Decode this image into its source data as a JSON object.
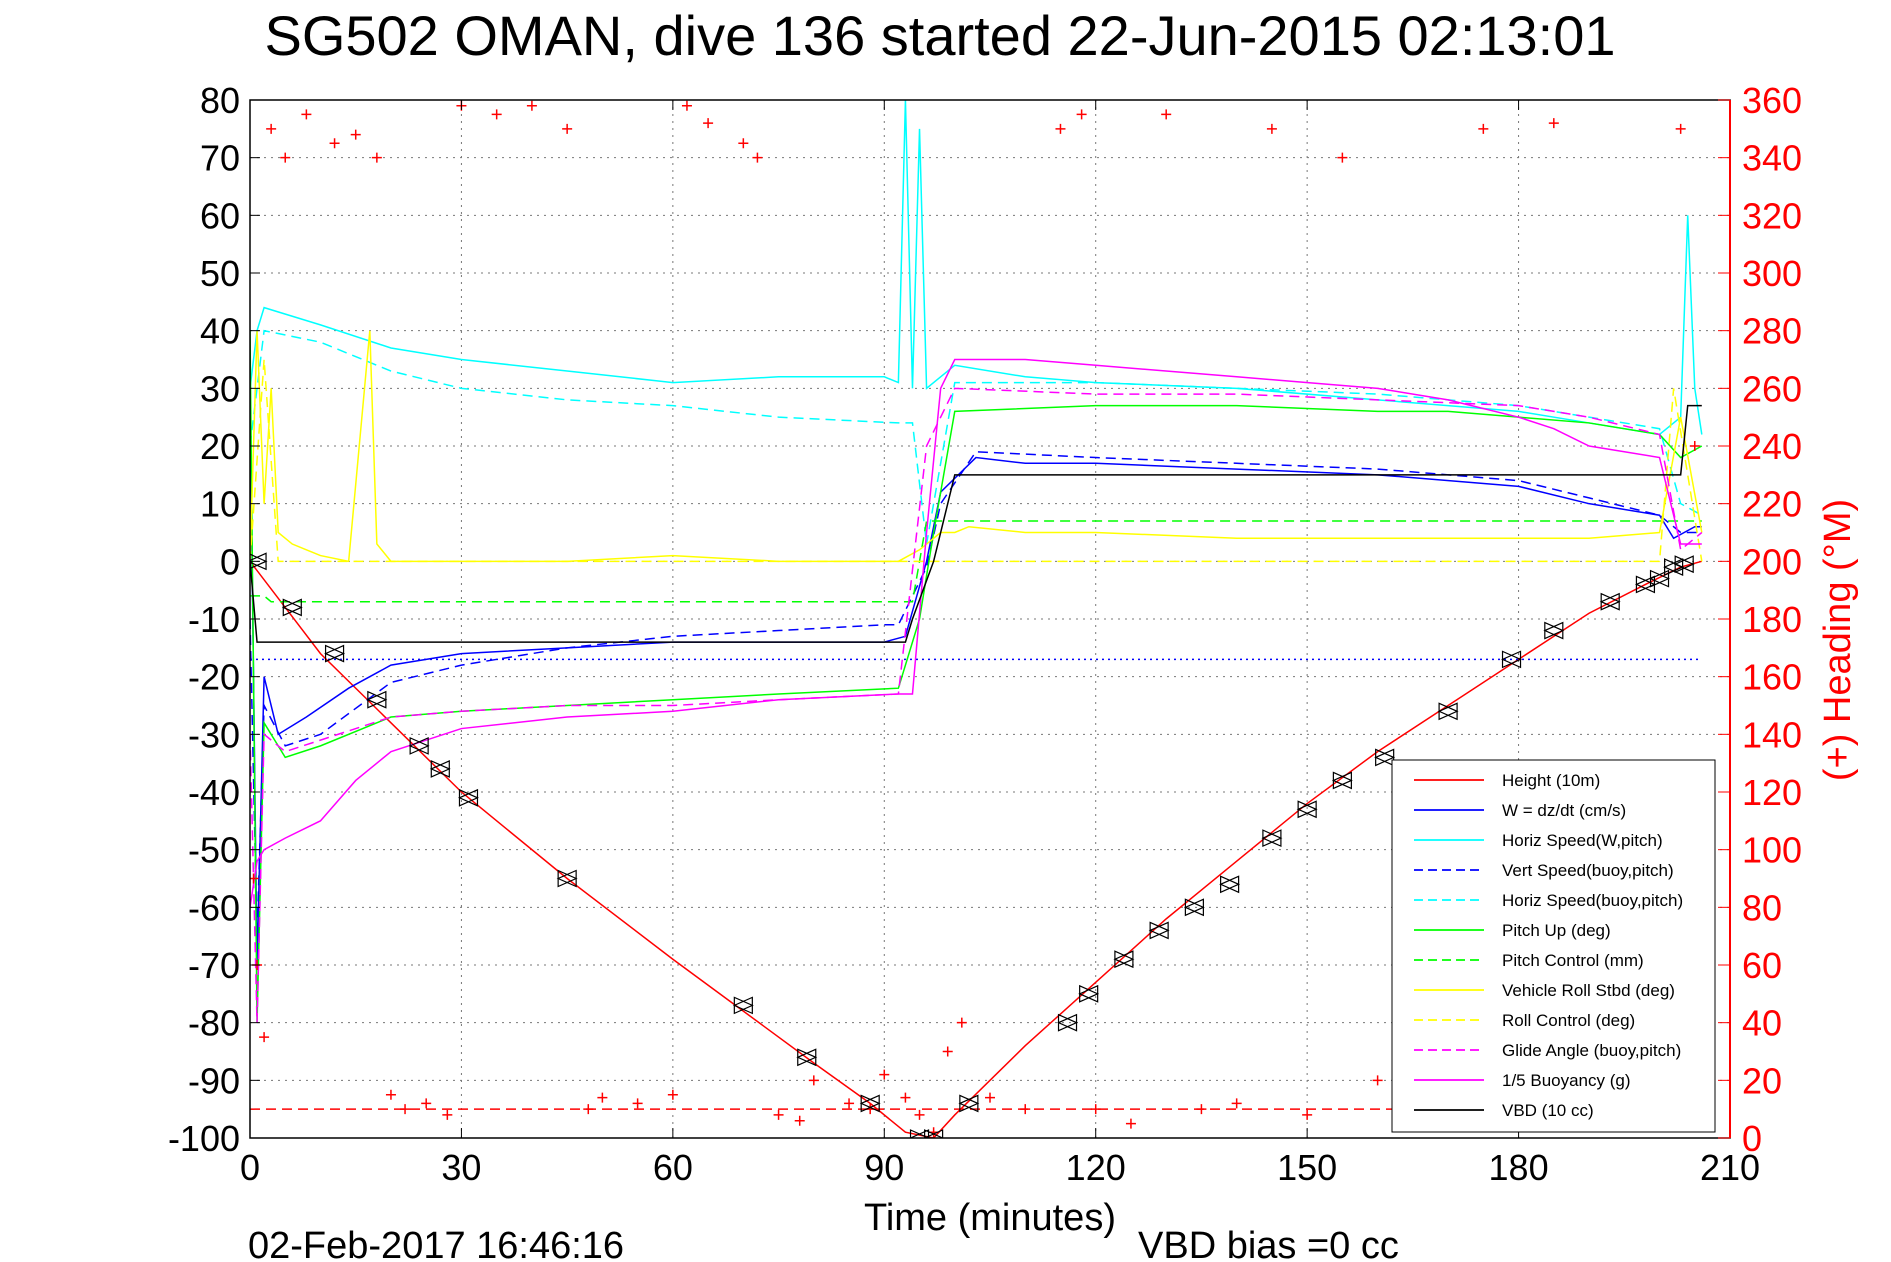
{
  "chart_data": {
    "type": "line",
    "title": "SG502 OMAN, dive 136 started 22-Jun-2015 02:13:01",
    "xlabel": "Time (minutes)",
    "ylabel": "",
    "y2label": "(+) Heading (°M)",
    "xlim": [
      0,
      210
    ],
    "ylim": [
      -100,
      80
    ],
    "y2lim": [
      0,
      360
    ],
    "xticks": [
      "0",
      "30",
      "60",
      "90",
      "120",
      "150",
      "180",
      "210"
    ],
    "yticks": [
      "80",
      "70",
      "60",
      "50",
      "40",
      "30",
      "20",
      "10",
      "0",
      "-10",
      "-20",
      "-30",
      "-40",
      "-50",
      "-60",
      "-70",
      "-80",
      "-90",
      "-100"
    ],
    "y2ticks": [
      "360",
      "340",
      "320",
      "300",
      "280",
      "260",
      "240",
      "220",
      "200",
      "180",
      "160",
      "140",
      "120",
      "100",
      "80",
      "60",
      "40",
      "20",
      "0"
    ],
    "grid": true,
    "legend_position": "lower-right",
    "footer_date": "02-Feb-2017 16:46:16",
    "footer_vbd": "VBD bias =0 cc",
    "series": [
      {
        "name": "Height (10m)",
        "color": "#ff0000",
        "style": "solid",
        "x": [
          0,
          5,
          10,
          20,
          30,
          45,
          60,
          70,
          80,
          88,
          93,
          97,
          100,
          110,
          120,
          130,
          140,
          150,
          160,
          170,
          180,
          190,
          198,
          203,
          206
        ],
        "y": [
          0,
          -8,
          -16,
          -28,
          -40,
          -55,
          -69,
          -78,
          -87,
          -94,
          -99,
          -100,
          -96,
          -84,
          -73,
          -62,
          -52,
          -42,
          -33,
          -25,
          -17,
          -9,
          -4,
          -1,
          0
        ]
      },
      {
        "name": "W = dz/dt (cm/s)",
        "color": "#0000ff",
        "style": "solid",
        "x": [
          0,
          1,
          2,
          4,
          8,
          14,
          20,
          30,
          45,
          60,
          75,
          90,
          93,
          96,
          98,
          103,
          110,
          120,
          140,
          160,
          180,
          190,
          200,
          202,
          205,
          206
        ],
        "y": [
          30,
          -70,
          -20,
          -30,
          -27,
          -22,
          -18,
          -16,
          -15,
          -14,
          -14,
          -14,
          -13,
          0,
          12,
          18,
          17,
          17,
          16,
          15,
          13,
          10,
          8,
          4,
          6,
          6
        ]
      },
      {
        "name": "Horiz Speed(W,pitch)",
        "color": "#00ffff",
        "style": "solid",
        "x": [
          0,
          1,
          2,
          10,
          20,
          30,
          45,
          60,
          75,
          90,
          92,
          93,
          94,
          95,
          96,
          98,
          100,
          110,
          120,
          140,
          160,
          180,
          190,
          200,
          203,
          204,
          205,
          206
        ],
        "y": [
          30,
          40,
          44,
          41,
          37,
          35,
          33,
          31,
          32,
          32,
          31,
          80,
          30,
          75,
          30,
          32,
          34,
          32,
          31,
          30,
          28,
          26,
          24,
          22,
          25,
          60,
          30,
          22
        ]
      },
      {
        "name": "Vert Speed(buoy,pitch)",
        "color": "#0000ff",
        "style": "dashed",
        "x": [
          0,
          1,
          2,
          5,
          10,
          20,
          30,
          45,
          60,
          75,
          90,
          92,
          96,
          98,
          103,
          120,
          140,
          160,
          180,
          190,
          200,
          203,
          206
        ],
        "y": [
          -10,
          -65,
          -25,
          -32,
          -30,
          -21,
          -18,
          -15,
          -13,
          -12,
          -11,
          -11,
          -1,
          10,
          19,
          18,
          17,
          16,
          14,
          11,
          8,
          5,
          5
        ]
      },
      {
        "name": "Horiz Speed(buoy,pitch)",
        "color": "#00ffff",
        "style": "dashed",
        "x": [
          0,
          2,
          10,
          20,
          30,
          45,
          60,
          75,
          92,
          94,
          96,
          100,
          120,
          140,
          160,
          180,
          190,
          200,
          203,
          206
        ],
        "y": [
          20,
          40,
          38,
          33,
          30,
          28,
          27,
          25,
          24,
          24,
          3,
          31,
          31,
          30,
          29,
          27,
          25,
          23,
          10,
          8
        ]
      },
      {
        "name": "Pitch Up (deg)",
        "color": "#00ff00",
        "style": "solid",
        "x": [
          0,
          1,
          2,
          5,
          10,
          20,
          30,
          45,
          60,
          75,
          92,
          95,
          97,
          100,
          120,
          140,
          160,
          170,
          180,
          190,
          200,
          203,
          206
        ],
        "y": [
          40,
          -80,
          -28,
          -34,
          -32,
          -27,
          -26,
          -25,
          -24,
          -23,
          -22,
          -10,
          5,
          26,
          27,
          27,
          26,
          26,
          25,
          24,
          22,
          18,
          20
        ]
      },
      {
        "name": "Pitch Control (mm)",
        "color": "#00ff00",
        "style": "dashed",
        "x": [
          0,
          2,
          3,
          92,
          94,
          96,
          100,
          204,
          206
        ],
        "y": [
          -6,
          -6,
          -7,
          -7,
          -7,
          7,
          7,
          7,
          7
        ]
      },
      {
        "name": "Vehicle Roll Stbd (deg)",
        "color": "#ffff00",
        "style": "solid",
        "x": [
          0,
          1,
          2,
          3,
          4,
          6,
          8,
          10,
          14,
          17,
          18,
          20,
          22,
          30,
          45,
          60,
          75,
          90,
          92,
          95,
          98,
          100,
          102,
          110,
          120,
          140,
          160,
          180,
          190,
          200,
          203,
          206
        ],
        "y": [
          0,
          40,
          10,
          30,
          5,
          3,
          2,
          1,
          0,
          40,
          3,
          0,
          0,
          0,
          0,
          1,
          0,
          0,
          0,
          2,
          5,
          5,
          6,
          5,
          5,
          4,
          4,
          4,
          4,
          5,
          25,
          5
        ]
      },
      {
        "name": "Roll Control (deg)",
        "color": "#ffff00",
        "style": "dashed",
        "x": [
          0,
          2,
          4,
          92,
          94,
          98,
          102,
          200,
          202,
          206
        ],
        "y": [
          0,
          35,
          0,
          0,
          0,
          0,
          0,
          0,
          30,
          0
        ]
      },
      {
        "name": "Glide Angle (buoy,pitch)",
        "color": "#ff00ff",
        "style": "dashed",
        "x": [
          0,
          1,
          2,
          5,
          10,
          20,
          30,
          45,
          60,
          75,
          92,
          96,
          100,
          120,
          140,
          160,
          180,
          190,
          200,
          203,
          206
        ],
        "y": [
          -30,
          -80,
          -30,
          -33,
          -31,
          -27,
          -26,
          -25,
          -25,
          -24,
          -23,
          20,
          30,
          29,
          29,
          28,
          27,
          25,
          22,
          2,
          5
        ]
      },
      {
        "name": "1/5 Buoyancy (g)",
        "color": "#ff00ff",
        "style": "solid",
        "x": [
          0,
          1,
          2,
          5,
          10,
          15,
          20,
          30,
          45,
          60,
          75,
          92,
          94,
          96,
          98,
          100,
          110,
          120,
          140,
          160,
          170,
          180,
          185,
          190,
          200,
          203,
          206
        ],
        "y": [
          -60,
          -52,
          -50,
          -48,
          -45,
          -38,
          -33,
          -29,
          -27,
          -26,
          -24,
          -23,
          -23,
          5,
          30,
          35,
          35,
          34,
          32,
          30,
          28,
          25,
          23,
          20,
          18,
          3,
          3
        ]
      },
      {
        "name": "VBD (10 cc)",
        "color": "#000000",
        "style": "solid",
        "x": [
          0,
          1,
          1.5,
          93,
          94,
          97,
          99,
          100,
          203,
          204,
          205,
          206
        ],
        "y": [
          0,
          -14,
          -14,
          -14,
          -10,
          0,
          10,
          15,
          15,
          27,
          27,
          27
        ]
      },
      {
        "name": "",
        "color": "#ff0000",
        "style": "markers-plus",
        "axis": "y2",
        "x": [
          0.5,
          1,
          2,
          3,
          5,
          8,
          12,
          15,
          18,
          20,
          22,
          25,
          28,
          30,
          35,
          40,
          45,
          48,
          50,
          55,
          60,
          62,
          65,
          70,
          72,
          75,
          78,
          80,
          85,
          88,
          90,
          93,
          95,
          97,
          99,
          101,
          105,
          110,
          115,
          118,
          120,
          125,
          130,
          135,
          140,
          145,
          150,
          155,
          160,
          165,
          170,
          175,
          180,
          185,
          190,
          195,
          200,
          203,
          205
        ],
        "y": [
          90,
          60,
          35,
          350,
          340,
          355,
          345,
          348,
          340,
          15,
          10,
          12,
          8,
          358,
          355,
          358,
          350,
          10,
          14,
          12,
          15,
          358,
          352,
          345,
          340,
          8,
          6,
          20,
          12,
          10,
          22,
          14,
          8,
          2,
          30,
          40,
          14,
          10,
          350,
          355,
          10,
          5,
          355,
          10,
          12,
          350,
          8,
          340,
          20,
          18,
          12,
          350,
          10,
          352,
          12,
          14,
          8,
          350,
          240
        ]
      },
      {
        "name": "",
        "color": "#ff0000",
        "style": "dashed-ref",
        "axis": "y2",
        "x": [
          0,
          206
        ],
        "y": [
          10,
          10
        ]
      },
      {
        "name": "",
        "color": "#0000ff",
        "style": "dotted-ref",
        "x": [
          0,
          206
        ],
        "y": [
          -17,
          -17
        ]
      },
      {
        "name": "",
        "color": "#000000",
        "style": "triangle-markers",
        "x": [
          1,
          6,
          12,
          18,
          24,
          27,
          31,
          45,
          70,
          79,
          88,
          95,
          97,
          102,
          116,
          119,
          124,
          129,
          134,
          139,
          145,
          150,
          155,
          161,
          170,
          179,
          185,
          193,
          198,
          200,
          202,
          203.5
        ],
        "y": [
          0,
          -8,
          -16,
          -24,
          -32,
          -36,
          -41,
          -55,
          -77,
          -86,
          -94,
          -100,
          -100,
          -94,
          -80,
          -75,
          -69,
          -64,
          -60,
          -56,
          -48,
          -43,
          -38,
          -34,
          -26,
          -17,
          -12,
          -7,
          -4,
          -3,
          -1,
          -0.5
        ]
      }
    ]
  }
}
